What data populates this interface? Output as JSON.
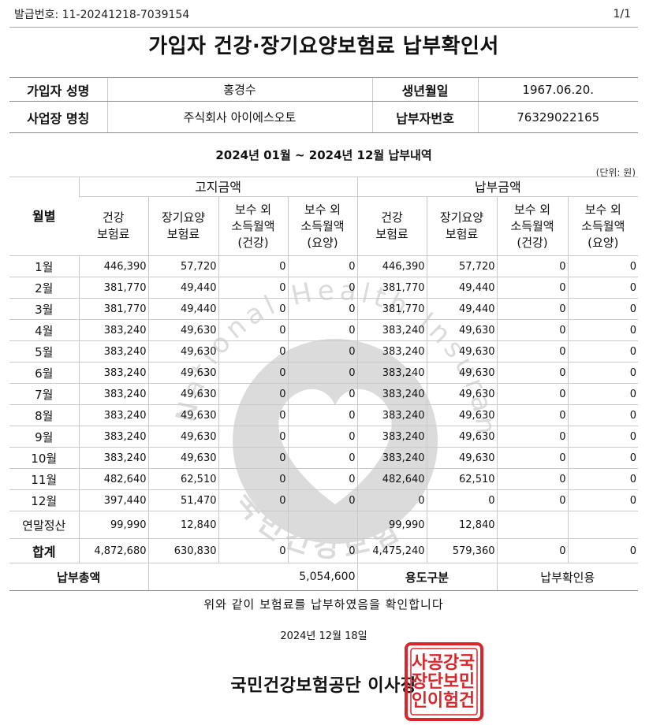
{
  "header": {
    "issue_label": "발급번호:",
    "issue_no": "11-20241218-7039154",
    "page": "1/1",
    "title": "가입자 건강·장기요양보험료 납부확인서"
  },
  "info": {
    "name_label": "가입자 성명",
    "name": "홍경수",
    "birth_label": "생년월일",
    "birth": "1967.06.20.",
    "company_label": "사업장 명칭",
    "company": "주식회사 아이에스오토",
    "payer_label": "납부자번호",
    "payer_no": "76329022165"
  },
  "period": "2024년 01월 ~ 2024년 12월 납부내역",
  "unit": "(단위: 원)",
  "table": {
    "month_header": "월별",
    "group_billed": "고지금액",
    "group_paid": "납부금액",
    "columns": [
      [
        "건강",
        "보험료"
      ],
      [
        "장기요양",
        "보험료"
      ],
      [
        "보수 외",
        "소득월액",
        "(건강)"
      ],
      [
        "보수 외",
        "소득월액",
        "(요양)"
      ],
      [
        "건강",
        "보험료"
      ],
      [
        "장기요양",
        "보험료"
      ],
      [
        "보수 외",
        "소득월액",
        "(건강)"
      ],
      [
        "보수 외",
        "소득월액",
        "(요양)"
      ]
    ],
    "rows": [
      {
        "month": "1월",
        "vals": [
          "446,390",
          "57,720",
          "0",
          "0",
          "446,390",
          "57,720",
          "0",
          "0"
        ]
      },
      {
        "month": "2월",
        "vals": [
          "381,770",
          "49,440",
          "0",
          "0",
          "381,770",
          "49,440",
          "0",
          "0"
        ]
      },
      {
        "month": "3월",
        "vals": [
          "381,770",
          "49,440",
          "0",
          "0",
          "381,770",
          "49,440",
          "0",
          "0"
        ]
      },
      {
        "month": "4월",
        "vals": [
          "383,240",
          "49,630",
          "0",
          "0",
          "383,240",
          "49,630",
          "0",
          "0"
        ]
      },
      {
        "month": "5월",
        "vals": [
          "383,240",
          "49,630",
          "0",
          "0",
          "383,240",
          "49,630",
          "0",
          "0"
        ]
      },
      {
        "month": "6월",
        "vals": [
          "383,240",
          "49,630",
          "0",
          "0",
          "383,240",
          "49,630",
          "0",
          "0"
        ]
      },
      {
        "month": "7월",
        "vals": [
          "383,240",
          "49,630",
          "0",
          "0",
          "383,240",
          "49,630",
          "0",
          "0"
        ]
      },
      {
        "month": "8월",
        "vals": [
          "383,240",
          "49,630",
          "0",
          "0",
          "383,240",
          "49,630",
          "0",
          "0"
        ]
      },
      {
        "month": "9월",
        "vals": [
          "383,240",
          "49,630",
          "0",
          "0",
          "383,240",
          "49,630",
          "0",
          "0"
        ]
      },
      {
        "month": "10월",
        "vals": [
          "383,240",
          "49,630",
          "0",
          "0",
          "383,240",
          "49,630",
          "0",
          "0"
        ]
      },
      {
        "month": "11월",
        "vals": [
          "482,640",
          "62,510",
          "0",
          "0",
          "482,640",
          "62,510",
          "0",
          "0"
        ]
      },
      {
        "month": "12월",
        "vals": [
          "397,440",
          "51,470",
          "0",
          "0",
          "0",
          "0",
          "0",
          "0"
        ]
      }
    ],
    "year_end": {
      "label": "연말정산",
      "vals": [
        "99,990",
        "12,840",
        "",
        "",
        "99,990",
        "12,840",
        "",
        ""
      ]
    },
    "total": {
      "label": "합계",
      "vals": [
        "4,872,680",
        "630,830",
        "0",
        "0",
        "4,475,240",
        "579,360",
        "0",
        "0"
      ]
    },
    "sum_label": "납부총액",
    "sum_value": "5,054,600",
    "use_label": "용도구분",
    "use_value": "납부확인용"
  },
  "footer": {
    "confirm": "위와 같이 보험료를 납부하였음을 확인합니다",
    "date": "2024년 12월 18일",
    "issuer": "국민건강보험공단 이사장"
  },
  "watermark_text": "National Health Insurance Service",
  "watermark_lower": "국민건강보험",
  "seal_text": "국민건강보험공단이사장인",
  "colors": {
    "seal": "#d9262b",
    "watermark": "#8a8a8a"
  }
}
